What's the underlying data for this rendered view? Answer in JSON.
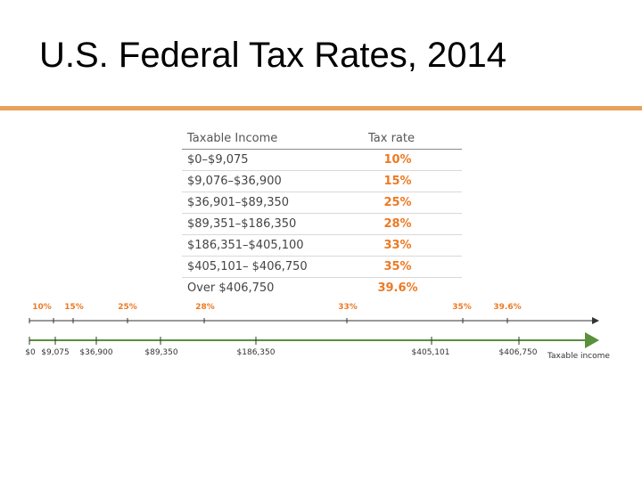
{
  "slide": {
    "title": "U.S. Federal Tax Rates, 2014"
  },
  "table": {
    "headers": {
      "income": "Taxable Income",
      "rate": "Tax rate"
    },
    "rows": [
      {
        "income": "$0–$9,075",
        "rate": "10%"
      },
      {
        "income": "$9,076–$36,900",
        "rate": "15%"
      },
      {
        "income": "$36,901–$89,350",
        "rate": "25%"
      },
      {
        "income": "$89,351–$186,350",
        "rate": "28%"
      },
      {
        "income": "$186,351–$405,100",
        "rate": "33%"
      },
      {
        "income": "$405,101– $406,750",
        "rate": "35%"
      },
      {
        "income": "Over $406,750",
        "rate": "39.6%"
      }
    ]
  },
  "timeline": {
    "rate_labels": [
      "10%",
      "15%",
      "25%",
      "28%",
      "33%",
      "35%",
      "39.6%"
    ],
    "income_labels": [
      "$0",
      "$9,075",
      "$36,900",
      "$89,350",
      "$186,350",
      "$405,101",
      "$406,750"
    ],
    "axis_label": "Taxable income",
    "colors": {
      "rate_line": "#333333",
      "income_line": "#5a8f3c",
      "rate_text": "#ec7a24",
      "accent_rule": "#e8a05a"
    }
  }
}
